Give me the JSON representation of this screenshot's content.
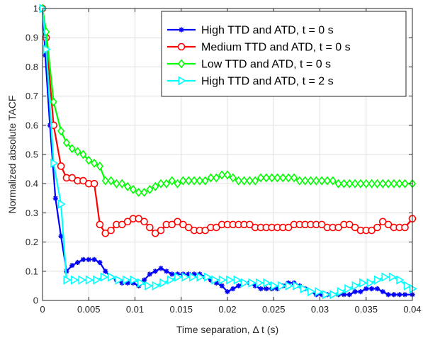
{
  "chart_data": {
    "type": "line",
    "title": "",
    "xlabel": "Time separation, Δ t (s)",
    "ylabel": "Normalized absolute TACF",
    "xlim": [
      0,
      0.04
    ],
    "ylim": [
      0,
      1
    ],
    "xticks": [
      0,
      0.005,
      0.01,
      0.015,
      0.02,
      0.025,
      0.03,
      0.035,
      0.04
    ],
    "xtick_labels": [
      "0",
      "0.005",
      "0.01",
      "0.015",
      "0.02",
      "0.025",
      "0.03",
      "0.035",
      "0.04"
    ],
    "yticks": [
      0,
      0.1,
      0.2,
      0.3,
      0.4,
      0.5,
      0.6,
      0.7,
      0.8,
      0.9,
      1
    ],
    "ytick_labels": [
      "0",
      "0.1",
      "0.2",
      "0.3",
      "0.4",
      "0.5",
      "0.6",
      "0.7",
      "0.8",
      "0.9",
      "1"
    ],
    "grid": true,
    "legend_position": "top-right",
    "series": [
      {
        "name": "High TTD and ATD, t = 0 s",
        "color": "#0000ff",
        "marker": "asterisk",
        "x": [
          0.0,
          0.0003,
          0.0008,
          0.0014,
          0.002,
          0.0026,
          0.0032,
          0.0038,
          0.0044,
          0.005,
          0.0056,
          0.0062,
          0.0068,
          0.0074,
          0.008,
          0.0086,
          0.0092,
          0.0098,
          0.0104,
          0.011,
          0.0116,
          0.0122,
          0.0128,
          0.0134,
          0.014,
          0.0146,
          0.0152,
          0.0158,
          0.0164,
          0.017,
          0.0176,
          0.0182,
          0.0188,
          0.0194,
          0.02,
          0.0206,
          0.0212,
          0.0218,
          0.0224,
          0.023,
          0.0236,
          0.0242,
          0.0248,
          0.0254,
          0.026,
          0.0266,
          0.0272,
          0.0278,
          0.0284,
          0.029,
          0.0296,
          0.0302,
          0.0308,
          0.0314,
          0.032,
          0.0326,
          0.0332,
          0.0338,
          0.0344,
          0.035,
          0.0356,
          0.0362,
          0.0368,
          0.0374,
          0.038,
          0.0386,
          0.0392,
          0.04
        ],
        "y": [
          1.0,
          0.84,
          0.6,
          0.35,
          0.22,
          0.1,
          0.12,
          0.13,
          0.14,
          0.14,
          0.14,
          0.13,
          0.1,
          0.08,
          0.07,
          0.06,
          0.06,
          0.06,
          0.05,
          0.07,
          0.09,
          0.1,
          0.11,
          0.1,
          0.09,
          0.09,
          0.09,
          0.09,
          0.09,
          0.09,
          0.08,
          0.07,
          0.06,
          0.05,
          0.03,
          0.04,
          0.05,
          0.06,
          0.06,
          0.05,
          0.04,
          0.04,
          0.04,
          0.04,
          0.05,
          0.06,
          0.06,
          0.05,
          0.04,
          0.03,
          0.02,
          0.02,
          0.02,
          0.02,
          0.02,
          0.02,
          0.02,
          0.03,
          0.03,
          0.04,
          0.04,
          0.04,
          0.03,
          0.02,
          0.02,
          0.02,
          0.02,
          0.02
        ]
      },
      {
        "name": "Medium TTD and ATD, t = 0 s",
        "color": "#ff0000",
        "marker": "circle",
        "x": [
          0.0,
          0.0004,
          0.0012,
          0.002,
          0.0026,
          0.0032,
          0.0038,
          0.0044,
          0.005,
          0.0056,
          0.0062,
          0.0068,
          0.0074,
          0.008,
          0.0086,
          0.0092,
          0.0098,
          0.0104,
          0.011,
          0.0116,
          0.0122,
          0.0128,
          0.0134,
          0.014,
          0.0146,
          0.0152,
          0.0158,
          0.0164,
          0.017,
          0.0176,
          0.0182,
          0.0188,
          0.0194,
          0.02,
          0.0206,
          0.0212,
          0.0218,
          0.0224,
          0.023,
          0.0236,
          0.0242,
          0.0248,
          0.0254,
          0.026,
          0.0266,
          0.0272,
          0.0278,
          0.0284,
          0.029,
          0.0296,
          0.0302,
          0.0308,
          0.0314,
          0.032,
          0.0326,
          0.0332,
          0.0338,
          0.0344,
          0.035,
          0.0356,
          0.0362,
          0.0368,
          0.0374,
          0.038,
          0.0386,
          0.0392,
          0.04
        ],
        "y": [
          1.0,
          0.9,
          0.6,
          0.46,
          0.42,
          0.42,
          0.41,
          0.41,
          0.4,
          0.4,
          0.26,
          0.23,
          0.24,
          0.26,
          0.26,
          0.27,
          0.28,
          0.28,
          0.27,
          0.25,
          0.23,
          0.24,
          0.26,
          0.26,
          0.27,
          0.26,
          0.25,
          0.24,
          0.24,
          0.24,
          0.25,
          0.25,
          0.26,
          0.26,
          0.26,
          0.26,
          0.26,
          0.26,
          0.25,
          0.25,
          0.25,
          0.25,
          0.25,
          0.25,
          0.25,
          0.26,
          0.26,
          0.26,
          0.26,
          0.26,
          0.26,
          0.25,
          0.25,
          0.25,
          0.26,
          0.26,
          0.25,
          0.24,
          0.24,
          0.24,
          0.25,
          0.27,
          0.26,
          0.25,
          0.25,
          0.25,
          0.28
        ]
      },
      {
        "name": "Low TTD and ATD, t = 0 s",
        "color": "#00ff00",
        "marker": "diamond",
        "x": [
          0.0,
          0.0004,
          0.0012,
          0.002,
          0.0026,
          0.0032,
          0.0038,
          0.0044,
          0.005,
          0.0056,
          0.0062,
          0.0068,
          0.0074,
          0.008,
          0.0086,
          0.0092,
          0.0098,
          0.0104,
          0.011,
          0.0116,
          0.0122,
          0.0128,
          0.0134,
          0.014,
          0.0146,
          0.0152,
          0.0158,
          0.0164,
          0.017,
          0.0176,
          0.0182,
          0.0188,
          0.0194,
          0.02,
          0.0206,
          0.0212,
          0.0218,
          0.0224,
          0.023,
          0.0236,
          0.0242,
          0.0248,
          0.0254,
          0.026,
          0.0266,
          0.0272,
          0.0278,
          0.0284,
          0.029,
          0.0296,
          0.0302,
          0.0308,
          0.0314,
          0.032,
          0.0326,
          0.0332,
          0.0338,
          0.0344,
          0.035,
          0.0356,
          0.0362,
          0.0368,
          0.0374,
          0.038,
          0.0386,
          0.0392,
          0.04
        ],
        "y": [
          1.0,
          0.92,
          0.68,
          0.58,
          0.54,
          0.52,
          0.51,
          0.5,
          0.48,
          0.47,
          0.46,
          0.41,
          0.41,
          0.4,
          0.4,
          0.39,
          0.38,
          0.37,
          0.37,
          0.38,
          0.39,
          0.4,
          0.4,
          0.41,
          0.4,
          0.41,
          0.41,
          0.41,
          0.41,
          0.41,
          0.42,
          0.42,
          0.43,
          0.43,
          0.42,
          0.41,
          0.41,
          0.41,
          0.41,
          0.42,
          0.42,
          0.42,
          0.42,
          0.42,
          0.42,
          0.42,
          0.41,
          0.41,
          0.41,
          0.41,
          0.41,
          0.41,
          0.41,
          0.4,
          0.4,
          0.4,
          0.4,
          0.4,
          0.4,
          0.4,
          0.4,
          0.4,
          0.4,
          0.4,
          0.4,
          0.4,
          0.4
        ]
      },
      {
        "name": "High TTD and ATD, t = 2 s",
        "color": "#00ffff",
        "marker": "triangle-right",
        "x": [
          0.0,
          0.0004,
          0.0012,
          0.002,
          0.0026,
          0.0034,
          0.0042,
          0.005,
          0.0058,
          0.0066,
          0.0074,
          0.0082,
          0.009,
          0.0098,
          0.0106,
          0.0114,
          0.0122,
          0.013,
          0.0138,
          0.0146,
          0.0154,
          0.0162,
          0.017,
          0.0178,
          0.0186,
          0.0194,
          0.0202,
          0.021,
          0.0218,
          0.0226,
          0.0234,
          0.0242,
          0.025,
          0.0258,
          0.0266,
          0.0274,
          0.0282,
          0.029,
          0.0298,
          0.0306,
          0.0314,
          0.0322,
          0.033,
          0.0338,
          0.0346,
          0.0354,
          0.0362,
          0.037,
          0.0378,
          0.0386,
          0.0394,
          0.04
        ],
        "y": [
          1.0,
          0.86,
          0.47,
          0.33,
          0.07,
          0.07,
          0.07,
          0.07,
          0.07,
          0.08,
          0.08,
          0.07,
          0.07,
          0.07,
          0.06,
          0.05,
          0.05,
          0.06,
          0.07,
          0.08,
          0.08,
          0.08,
          0.08,
          0.08,
          0.07,
          0.07,
          0.07,
          0.07,
          0.06,
          0.06,
          0.06,
          0.06,
          0.05,
          0.05,
          0.05,
          0.05,
          0.04,
          0.03,
          0.03,
          0.02,
          0.02,
          0.03,
          0.04,
          0.05,
          0.06,
          0.06,
          0.07,
          0.08,
          0.08,
          0.07,
          0.05,
          0.04
        ]
      }
    ]
  }
}
